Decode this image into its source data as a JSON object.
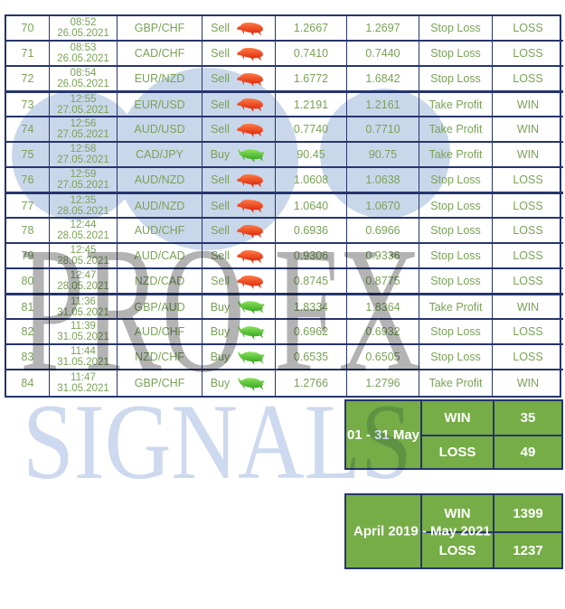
{
  "watermark": {
    "title": "PRO FX",
    "subtitle": "SIGNALS"
  },
  "colors": {
    "border_navy": "#26356d",
    "text_green": "#7aa257",
    "summary_green": "#76ad47",
    "summary_text": "#ffffff",
    "circle_blue": "#c9d7eb",
    "watermark_gray": "#a0a0a0",
    "watermark_blue": "#cdd9ee",
    "bear_red": "#d61a00",
    "bull_green": "#229a12"
  },
  "signals": [
    {
      "no": "70",
      "time": "08:52",
      "date": "26.05.2021",
      "pair": "GBP/CHF",
      "action": "Sell",
      "icon": "bear-icon",
      "entry": "1.2667",
      "exit": "1.2697",
      "outcome": "Stop Loss",
      "result": "LOSS",
      "group_start": false
    },
    {
      "no": "71",
      "time": "08:53",
      "date": "26.05.2021",
      "pair": "CAD/CHF",
      "action": "Sell",
      "icon": "bear-icon",
      "entry": "0.7410",
      "exit": "0.7440",
      "outcome": "Stop Loss",
      "result": "LOSS",
      "group_start": false
    },
    {
      "no": "72",
      "time": "08:54",
      "date": "26.05.2021",
      "pair": "EUR/NZD",
      "action": "Sell",
      "icon": "bear-icon",
      "entry": "1.6772",
      "exit": "1.6842",
      "outcome": "Stop Loss",
      "result": "LOSS",
      "group_start": false
    },
    {
      "no": "73",
      "time": "12:55",
      "date": "27.05.2021",
      "pair": "EUR/USD",
      "action": "Sell",
      "icon": "bear-icon",
      "entry": "1.2191",
      "exit": "1.2161",
      "outcome": "Take Profit",
      "result": "WIN",
      "group_start": true
    },
    {
      "no": "74",
      "time": "12:56",
      "date": "27.05.2021",
      "pair": "AUD/USD",
      "action": "Sell",
      "icon": "bear-icon",
      "entry": "0.7740",
      "exit": "0.7710",
      "outcome": "Take Profit",
      "result": "WIN",
      "group_start": false
    },
    {
      "no": "75",
      "time": "12:58",
      "date": "27.05.2021",
      "pair": "CAD/JPY",
      "action": "Buy",
      "icon": "bull-icon",
      "entry": "90.45",
      "exit": "90.75",
      "outcome": "Take Profit",
      "result": "WIN",
      "group_start": false
    },
    {
      "no": "76",
      "time": "12:59",
      "date": "27.05.2021",
      "pair": "AUD/NZD",
      "action": "Sell",
      "icon": "bear-icon",
      "entry": "1.0608",
      "exit": "1.0638",
      "outcome": "Stop Loss",
      "result": "LOSS",
      "group_start": false
    },
    {
      "no": "77",
      "time": "12:35",
      "date": "28.05.2021",
      "pair": "AUD/NZD",
      "action": "Sell",
      "icon": "bear-icon",
      "entry": "1.0640",
      "exit": "1.0670",
      "outcome": "Stop Loss",
      "result": "LOSS",
      "group_start": true
    },
    {
      "no": "78",
      "time": "12:44",
      "date": "28.05.2021",
      "pair": "AUD/CHF",
      "action": "Sell",
      "icon": "bear-icon",
      "entry": "0.6936",
      "exit": "0.6966",
      "outcome": "Stop Loss",
      "result": "LOSS",
      "group_start": false
    },
    {
      "no": "79",
      "time": "12:45",
      "date": "28.05.2021",
      "pair": "AUD/CAD",
      "action": "Sell",
      "icon": "bear-icon",
      "entry": "0.9306",
      "exit": "0.9336",
      "outcome": "Stop Loss",
      "result": "LOSS",
      "group_start": false
    },
    {
      "no": "80",
      "time": "12:47",
      "date": "28.05.2021",
      "pair": "NZD/CAD",
      "action": "Sell",
      "icon": "bear-icon",
      "entry": "0.8745",
      "exit": "0.8775",
      "outcome": "Stop Loss",
      "result": "LOSS",
      "group_start": false
    },
    {
      "no": "81",
      "time": "11:36",
      "date": "31.05.2021",
      "pair": "GBP/AUD",
      "action": "Buy",
      "icon": "bull-icon",
      "entry": "1.8334",
      "exit": "1.8364",
      "outcome": "Take Profit",
      "result": "WIN",
      "group_start": true
    },
    {
      "no": "82",
      "time": "11:39",
      "date": "31.05.2021",
      "pair": "AUD/CHF",
      "action": "Buy",
      "icon": "bull-icon",
      "entry": "0.6962",
      "exit": "0.6932",
      "outcome": "Stop Loss",
      "result": "LOSS",
      "group_start": false
    },
    {
      "no": "83",
      "time": "11:44",
      "date": "31.05.2021",
      "pair": "NZD/CHF",
      "action": "Buy",
      "icon": "bull-icon",
      "entry": "0.6535",
      "exit": "0.6505",
      "outcome": "Stop Loss",
      "result": "LOSS",
      "group_start": false
    },
    {
      "no": "84",
      "time": "11:47",
      "date": "31.05.2021",
      "pair": "GBP/CHF",
      "action": "Buy",
      "icon": "bull-icon",
      "entry": "1.2766",
      "exit": "1.2796",
      "outcome": "Take Profit",
      "result": "WIN",
      "group_start": false
    }
  ],
  "summary_month": {
    "period": "01 - 31 May",
    "win_label": "WIN",
    "win_value": "35",
    "loss_label": "LOSS",
    "loss_value": "49"
  },
  "summary_total": {
    "period": "April 2019 - May 2021",
    "win_label": "WIN",
    "win_value": "1399",
    "loss_label": "LOSS",
    "loss_value": "1237"
  }
}
